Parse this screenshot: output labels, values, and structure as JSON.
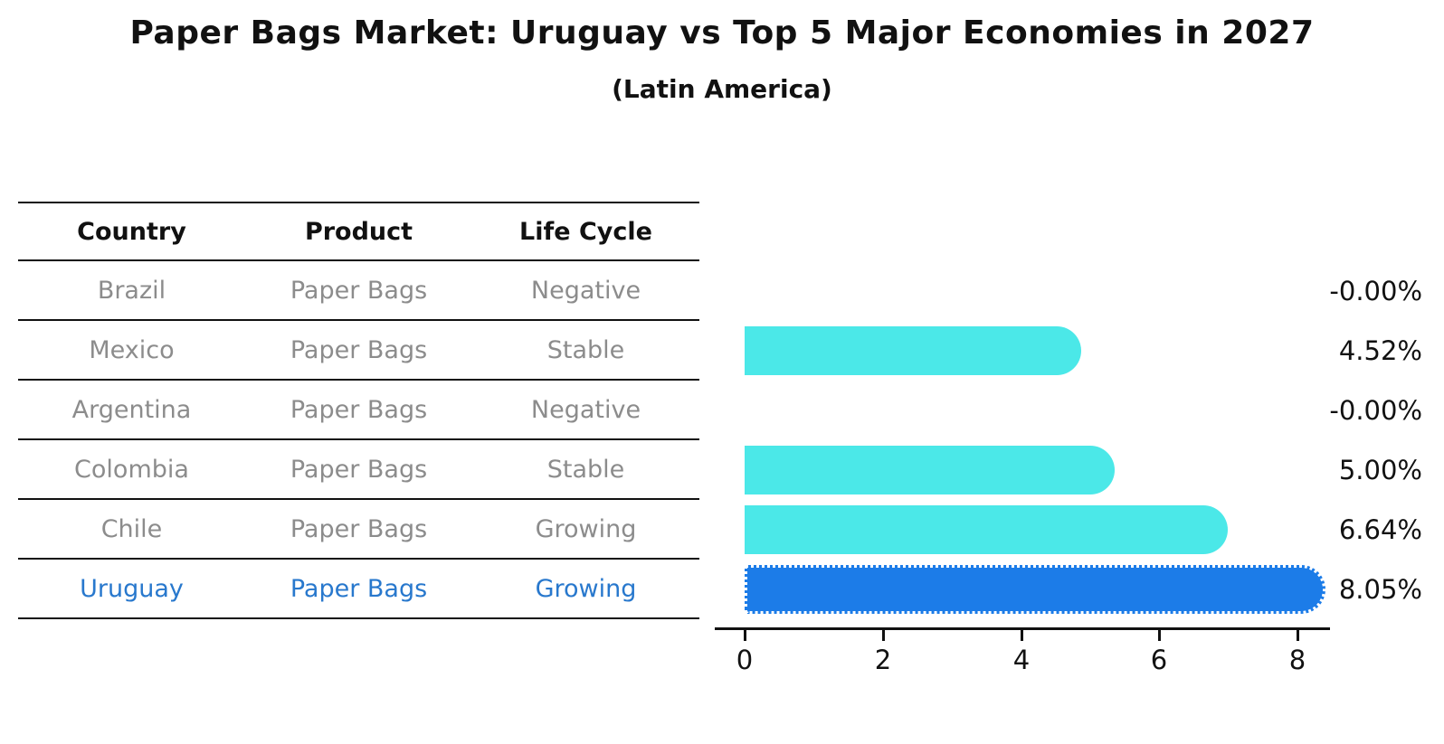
{
  "header": {
    "title": "Paper Bags Market: Uruguay vs Top 5 Major Economies in 2027",
    "subtitle": "(Latin America)"
  },
  "table": {
    "columns": [
      "Country",
      "Product",
      "Life Cycle"
    ],
    "rows": [
      {
        "country": "Brazil",
        "product": "Paper Bags",
        "life_cycle": "Negative"
      },
      {
        "country": "Mexico",
        "product": "Paper Bags",
        "life_cycle": "Stable"
      },
      {
        "country": "Argentina",
        "product": "Paper Bags",
        "life_cycle": "Negative"
      },
      {
        "country": "Colombia",
        "product": "Paper Bags",
        "life_cycle": "Stable"
      },
      {
        "country": "Chile",
        "product": "Paper Bags",
        "life_cycle": "Growing"
      },
      {
        "country": "Uruguay",
        "product": "Paper Bags",
        "life_cycle": "Growing"
      }
    ]
  },
  "chart_data": {
    "type": "bar",
    "orientation": "horizontal",
    "title": "Paper Bags Market: Uruguay vs Top 5 Major Economies in 2027",
    "subtitle": "(Latin America)",
    "categories": [
      "Brazil",
      "Mexico",
      "Argentina",
      "Colombia",
      "Chile",
      "Uruguay"
    ],
    "values": [
      -0.0,
      4.52,
      -0.0,
      5.0,
      6.64,
      8.05
    ],
    "value_labels": [
      "-0.00%",
      "4.52%",
      "-0.00%",
      "5.00%",
      "6.64%",
      "8.05%"
    ],
    "xticks": [
      "0",
      "2",
      "4",
      "6",
      "8"
    ],
    "xtick_values": [
      0,
      2,
      4,
      6,
      8
    ],
    "xlim": [
      0,
      8.5
    ],
    "grid": false,
    "legend": "none",
    "highlight_index": 5,
    "colors": {
      "bar": "#4BE8E8",
      "highlight_bar": "#1C7CE8",
      "highlight_text": "#2878CD",
      "table_text": "#8C8C8C",
      "axis": "#111111"
    }
  }
}
